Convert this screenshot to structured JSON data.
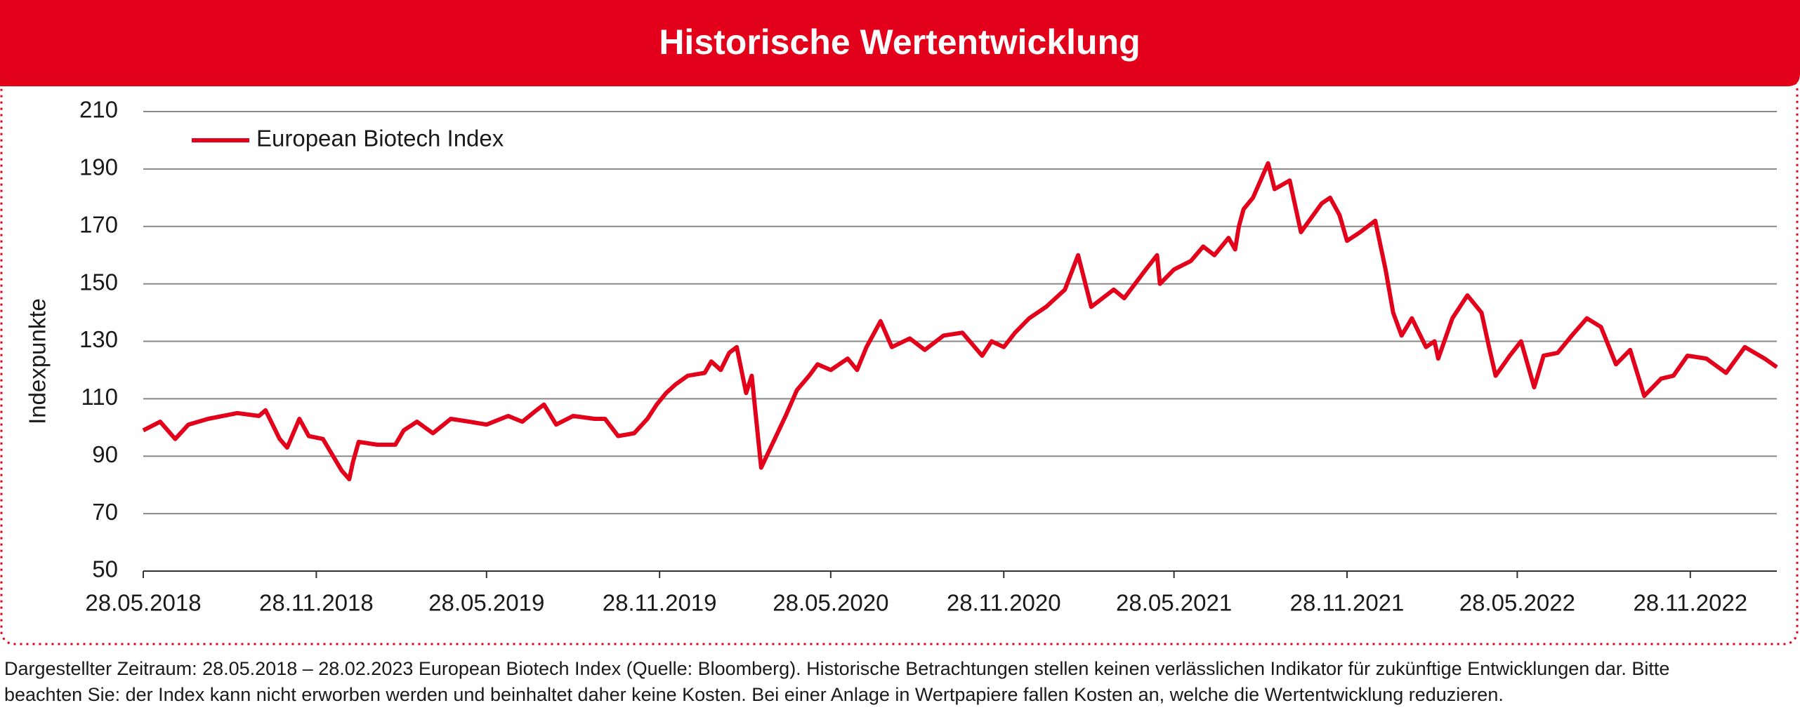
{
  "chart_data": {
    "type": "line",
    "title": "Historische Wertentwicklung",
    "y_label": "Indexpunkte",
    "footnote": [
      "Dargestellter Zeitraum: 28.05.2018 – 28.02.2023 European Biotech Index (Quelle: Bloomberg). Historische Betrachtungen stellen keinen verlässlichen Indikator für zukünftige Entwicklungen dar. Bitte",
      "beachten Sie: der Index kann nicht erworben werden und beinhaltet daher keine Kosten. Bei einer Anlage in Wertpapiere fallen Kosten an, welche die Wertentwicklung reduzieren."
    ],
    "x": [
      "28.05.2018",
      "15.06.2018",
      "01.07.2018",
      "15.07.2018",
      "05.08.2018",
      "05.09.2018",
      "28.09.2018",
      "05.10.2018",
      "20.10.2018",
      "28.10.2018",
      "10.11.2018",
      "20.11.2018",
      "05.12.2018",
      "25.12.2018",
      "02.01.2019",
      "06.01.2019",
      "12.01.2019",
      "01.02.2019",
      "20.02.2019",
      "01.03.2019",
      "15.03.2019",
      "01.04.2019",
      "20.04.2019",
      "10.05.2019",
      "28.05.2019",
      "20.06.2019",
      "05.07.2019",
      "20.07.2019",
      "28.07.2019",
      "10.08.2019",
      "28.08.2019",
      "20.09.2019",
      "01.10.2019",
      "15.10.2019",
      "01.11.2019",
      "15.11.2019",
      "25.11.2019",
      "05.12.2019",
      "15.12.2019",
      "28.12.2019",
      "15.01.2020",
      "22.01.2020",
      "01.02.2020",
      "10.02.2020",
      "18.02.2020",
      "28.02.2020",
      "05.03.2020",
      "15.03.2020",
      "28.03.2020",
      "10.04.2020",
      "22.04.2020",
      "05.05.2020",
      "14.05.2020",
      "28.05.2020",
      "15.06.2020",
      "25.06.2020",
      "05.07.2020",
      "20.07.2020",
      "01.08.2020",
      "20.08.2020",
      "05.09.2020",
      "25.09.2020",
      "15.10.2020",
      "05.11.2020",
      "15.11.2020",
      "28.11.2020",
      "10.12.2020",
      "25.12.2020",
      "12.01.2021",
      "01.02.2021",
      "15.02.2021",
      "01.03.2021",
      "25.03.2021",
      "05.04.2021",
      "28.04.2021",
      "10.05.2021",
      "13.05.2021",
      "28.05.2021",
      "15.06.2021",
      "28.06.2021",
      "10.07.2021",
      "25.07.2021",
      "01.08.2021",
      "05.08.2021",
      "10.08.2021",
      "20.08.2021",
      "05.09.2021",
      "12.09.2021",
      "28.09.2021",
      "10.10.2021",
      "01.11.2021",
      "10.11.2021",
      "20.11.2021",
      "28.11.2021",
      "12.12.2021",
      "28.12.2021",
      "08.01.2022",
      "16.01.2022",
      "25.01.2022",
      "05.02.2022",
      "20.02.2022",
      "01.03.2022",
      "05.03.2022",
      "20.03.2022",
      "05.04.2022",
      "20.04.2022",
      "28.04.2022",
      "05.05.2022",
      "20.05.2022",
      "01.06.2022",
      "15.06.2022",
      "25.06.2022",
      "10.07.2022",
      "25.07.2022",
      "10.08.2022",
      "25.08.2022",
      "10.09.2022",
      "25.09.2022",
      "10.10.2022",
      "28.10.2022",
      "10.11.2022",
      "25.11.2022",
      "15.12.2022",
      "05.01.2023",
      "25.01.2023",
      "15.02.2023",
      "28.02.2023"
    ],
    "series": [
      {
        "name": "European Biotech Index",
        "color": "#e2001a",
        "values": [
          99,
          102,
          96,
          101,
          103,
          105,
          104,
          106,
          96,
          93,
          103,
          97,
          96,
          85,
          82,
          88,
          95,
          94,
          94,
          99,
          102,
          98,
          103,
          102,
          101,
          104,
          102,
          106,
          108,
          101,
          104,
          103,
          103,
          97,
          98,
          103,
          108,
          112,
          115,
          118,
          119,
          123,
          120,
          126,
          128,
          112,
          118,
          86,
          95,
          104,
          113,
          118,
          122,
          120,
          124,
          120,
          128,
          137,
          128,
          131,
          127,
          132,
          133,
          125,
          130,
          128,
          133,
          138,
          142,
          148,
          160,
          142,
          148,
          145,
          155,
          160,
          150,
          155,
          158,
          163,
          160,
          166,
          162,
          170,
          176,
          180,
          192,
          183,
          186,
          168,
          178,
          180,
          174,
          165,
          168,
          172,
          155,
          140,
          132,
          138,
          128,
          130,
          124,
          138,
          146,
          140,
          128,
          118,
          125,
          130,
          114,
          125,
          126,
          132,
          138,
          135,
          122,
          127,
          111,
          117,
          118,
          125,
          124,
          119,
          128,
          124,
          121
        ]
      }
    ],
    "xlim": [
      "28.05.2018",
      "28.02.2023"
    ],
    "xticks": [
      "28.05.2018",
      "28.11.2018",
      "28.05.2019",
      "28.11.2019",
      "28.05.2020",
      "28.11.2020",
      "28.05.2021",
      "28.11.2021",
      "28.05.2022",
      "28.11.2022"
    ],
    "ylim": [
      50,
      210
    ],
    "yticks": [
      50,
      70,
      90,
      110,
      130,
      150,
      170,
      190,
      210
    ],
    "grid": true,
    "legend": "upper left"
  }
}
